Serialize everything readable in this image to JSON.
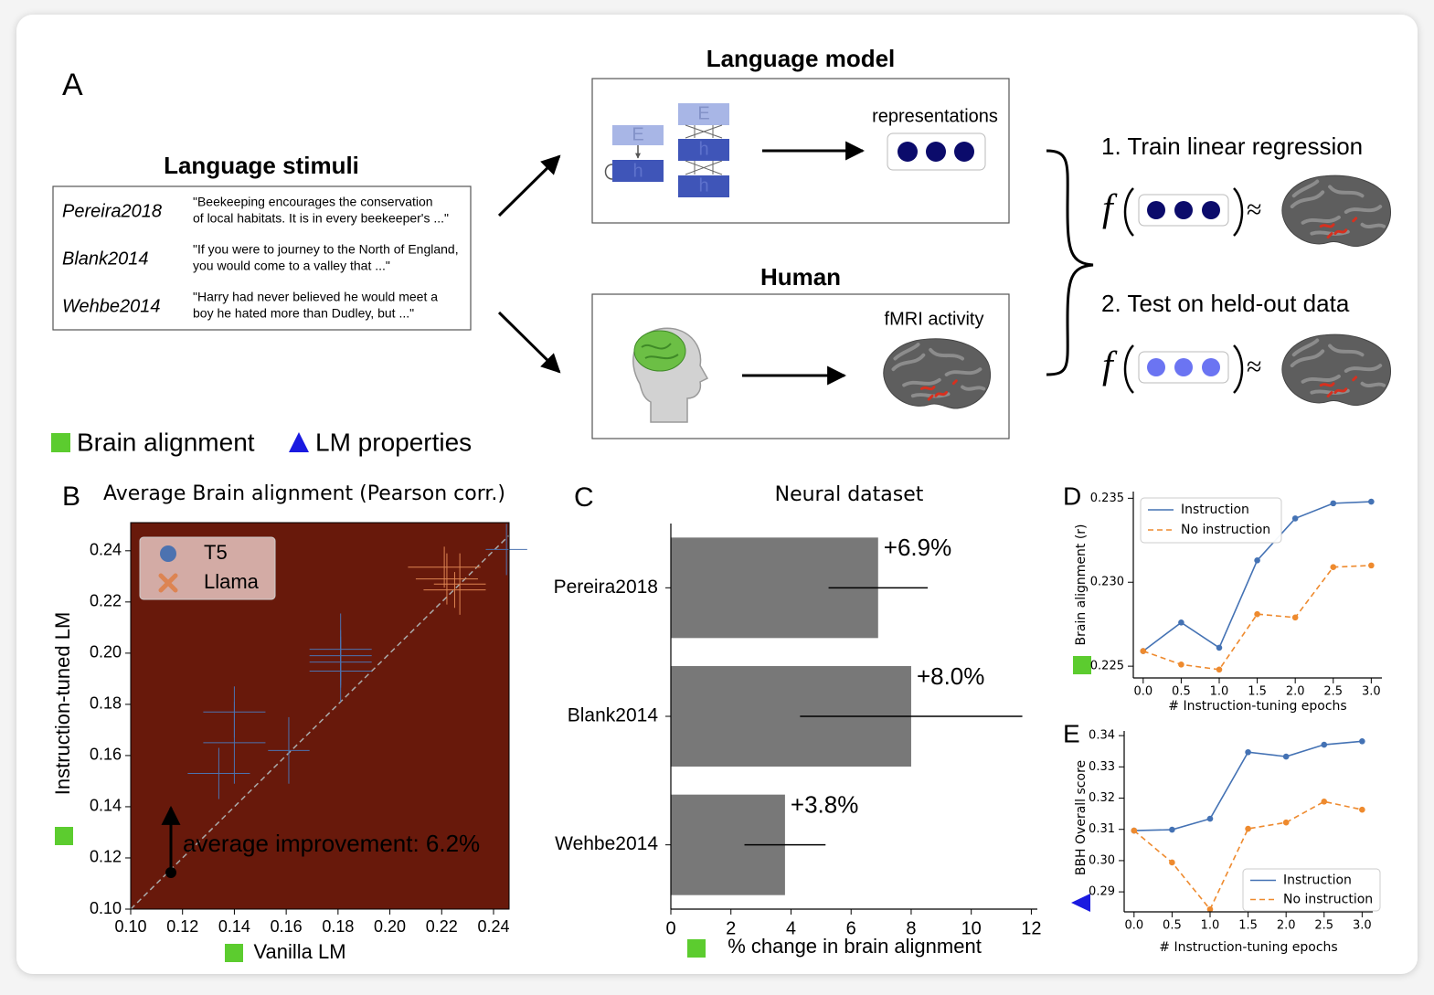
{
  "figure": {
    "panel_a": "A",
    "stimuli": {
      "title": "Language stimuli",
      "rows": [
        {
          "dataset": "Pereira2018",
          "text": [
            "\"Beekeeping encourages the conservation",
            "of local habitats. It is in every beekeeper's ...\""
          ]
        },
        {
          "dataset": "Blank2014",
          "text": [
            "\"If you were to journey to the North of England,",
            "you would come to a valley that ...\""
          ]
        },
        {
          "dataset": "Wehbe2014",
          "text": [
            "\"Harry had never believed he would meet a",
            "boy he hated more than Dudley, but ...\""
          ]
        }
      ]
    },
    "language_model": {
      "title": "Language model",
      "blocks": [
        "E",
        "h"
      ],
      "output": "representations"
    },
    "human": {
      "title": "Human",
      "output": "fMRI activity"
    },
    "steps": [
      "1. Train linear regression",
      "2. Test on held-out data"
    ],
    "formula": {
      "f": "f",
      "approx": "≈"
    },
    "legend": [
      "Brain alignment",
      "LM properties"
    ]
  },
  "chart_data": [
    {
      "type": "scatter",
      "panel": "B",
      "title": "Average Brain alignment (Pearson corr.)",
      "xlabel": "Vanilla LM",
      "ylabel": "Instruction-tuned LM",
      "xlim": [
        0.1,
        0.246
      ],
      "ylim": [
        0.1,
        0.251
      ],
      "xticks": [
        {
          "value": 0.1,
          "label": "0.10"
        },
        0.12,
        0.14,
        0.16,
        0.18,
        {
          "value": 0.2,
          "label": "0.20"
        },
        0.22,
        0.24
      ],
      "yticks": [
        {
          "value": 0.1,
          "label": "0.10"
        },
        0.12,
        0.14,
        0.16,
        0.18,
        {
          "value": 0.2,
          "label": "0.20"
        },
        0.22,
        0.24
      ],
      "background": "#68190b",
      "grid": false,
      "legend": "upper left",
      "annotation": "average improvement: 6.2%",
      "series": [
        {
          "name": "T5",
          "color": "#4c72b0",
          "marker": "circle",
          "x": [
            0.14,
            0.14,
            0.134,
            0.161,
            0.181,
            0.181,
            0.181,
            0.181,
            0.245
          ],
          "y": [
            0.177,
            0.165,
            0.153,
            0.162,
            0.2015,
            0.199,
            0.1965,
            0.193,
            0.2405
          ],
          "xerr": [
            0.012,
            0.012,
            0.012,
            0.008,
            0.012,
            0.012,
            0.012,
            0.012,
            0.008
          ],
          "yerr": [
            0.01,
            0.016,
            0.01,
            0.013,
            0.014,
            0.01,
            0.01,
            0.012,
            0.01
          ]
        },
        {
          "name": "Llama",
          "color": "#dd8452",
          "marker": "x",
          "x": [
            0.221,
            0.222,
            0.225,
            0.227
          ],
          "y": [
            0.2336,
            0.229,
            0.2247,
            0.227
          ],
          "xerr": [
            0.014,
            0.012,
            0.012,
            0.01
          ],
          "yerr": [
            0.008,
            0.01,
            0.007,
            0.012
          ]
        }
      ]
    },
    {
      "type": "bar",
      "orientation": "horizontal",
      "panel": "C",
      "title": "Neural dataset",
      "xlabel": "% change in brain alignment",
      "categories": [
        "Pereira2018",
        "Blank2014",
        "Wehbe2014"
      ],
      "values": [
        6.9,
        8.0,
        3.8
      ],
      "value_labels": [
        "+6.9%",
        "+8.0%",
        "+3.8%"
      ],
      "errors": [
        1.65,
        3.7,
        1.35
      ],
      "color": "#787878",
      "xlim": [
        0,
        12.2
      ],
      "xticks": [
        0,
        2,
        4,
        6,
        8,
        10,
        12
      ],
      "grid": false
    },
    {
      "type": "line",
      "panel": "D",
      "xlabel": "# Instruction-tuning epochs",
      "ylabel": "Brain alignment (r)",
      "x": [
        0,
        0.5,
        1,
        1.5,
        2,
        2.5,
        3
      ],
      "xlim": [
        -0.13,
        3.14
      ],
      "ylim": [
        0.2243,
        0.2354
      ],
      "xticks": [
        {
          "value": 0,
          "label": "0.0"
        },
        0.5,
        {
          "value": 1,
          "label": "1.0"
        },
        1.5,
        {
          "value": 2,
          "label": "2.0"
        },
        2.5,
        {
          "value": 3,
          "label": "3.0"
        }
      ],
      "yticks": [
        0.225,
        {
          "value": 0.23,
          "label": "0.230"
        },
        0.235
      ],
      "grid": false,
      "legend": "upper left",
      "series": [
        {
          "name": "Instruction",
          "color": "#4472b4",
          "linestyle": "solid",
          "values": [
            0.2259,
            0.2276,
            0.2261,
            0.2313,
            0.2338,
            0.2347,
            0.2348
          ]
        },
        {
          "name": "No instruction",
          "color": "#ee8a2e",
          "linestyle": "dashed",
          "values": [
            0.2259,
            0.2251,
            0.2248,
            0.2281,
            0.2279,
            0.2309,
            0.231
          ]
        }
      ]
    },
    {
      "type": "line",
      "panel": "E",
      "xlabel": "# Instruction-tuning epochs",
      "ylabel": "BBH Overall score",
      "x": [
        0,
        0.5,
        1,
        1.5,
        2,
        2.5,
        3
      ],
      "xlim": [
        -0.13,
        3.14
      ],
      "ylim": [
        0.2836,
        0.3415
      ],
      "xticks": [
        {
          "value": 0,
          "label": "0.0"
        },
        0.5,
        {
          "value": 1,
          "label": "1.0"
        },
        1.5,
        {
          "value": 2,
          "label": "2.0"
        },
        2.5,
        {
          "value": 3,
          "label": "3.0"
        }
      ],
      "yticks": [
        0.29,
        {
          "value": 0.3,
          "label": "0.30"
        },
        0.31,
        0.32,
        0.33,
        0.34
      ],
      "grid": false,
      "legend": "lower right",
      "series": [
        {
          "name": "Instruction",
          "color": "#4472b4",
          "linestyle": "solid",
          "values": [
            0.3096,
            0.3099,
            0.3134,
            0.3347,
            0.3333,
            0.3371,
            0.3382
          ]
        },
        {
          "name": "No instruction",
          "color": "#ee8a2e",
          "linestyle": "dashed",
          "values": [
            0.3096,
            0.2994,
            0.2844,
            0.3102,
            0.3122,
            0.3189,
            0.3163
          ]
        }
      ]
    }
  ]
}
